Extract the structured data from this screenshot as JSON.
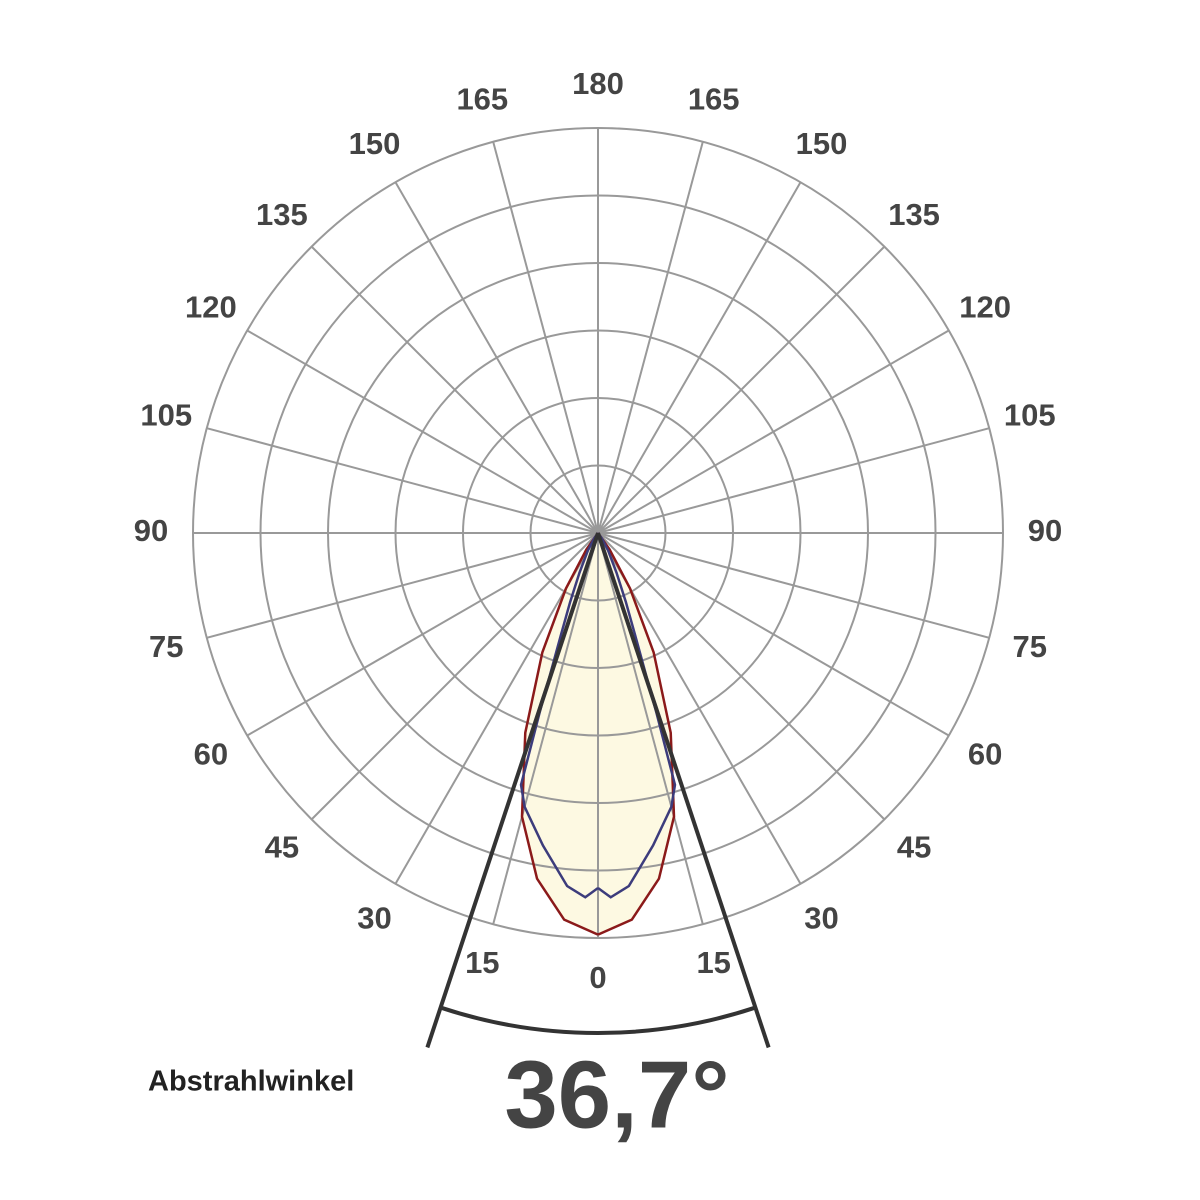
{
  "chart_data": {
    "type": "polar",
    "angle_ticks": [
      0,
      15,
      30,
      45,
      60,
      75,
      90,
      105,
      120,
      135,
      150,
      165,
      180
    ],
    "rlim": [
      0,
      6
    ],
    "rticks": [
      1,
      2,
      3,
      4,
      5,
      6
    ],
    "grid": true,
    "series": [
      {
        "color": "#8b1a1a",
        "fill": "#fdf9e2",
        "angles": [
          0,
          5,
          10,
          15,
          20,
          25,
          30,
          35,
          40
        ],
        "values": [
          5.95,
          5.75,
          5.2,
          4.35,
          3.15,
          1.95,
          0.95,
          0.3,
          0
        ]
      },
      {
        "color": "#3c3c7c",
        "angles": [
          0,
          2,
          5,
          10,
          15,
          17,
          18,
          20,
          22,
          25,
          30,
          35,
          40
        ],
        "values": [
          5.26,
          5.4,
          5.25,
          4.7,
          4.2,
          3.9,
          2.8,
          1.6,
          1.1,
          0.65,
          0.3,
          0.1,
          0
        ]
      }
    ],
    "beam_angle": {
      "label": "Abstrahlwinkel",
      "value": 36.7,
      "value_label": "36,7°"
    }
  }
}
